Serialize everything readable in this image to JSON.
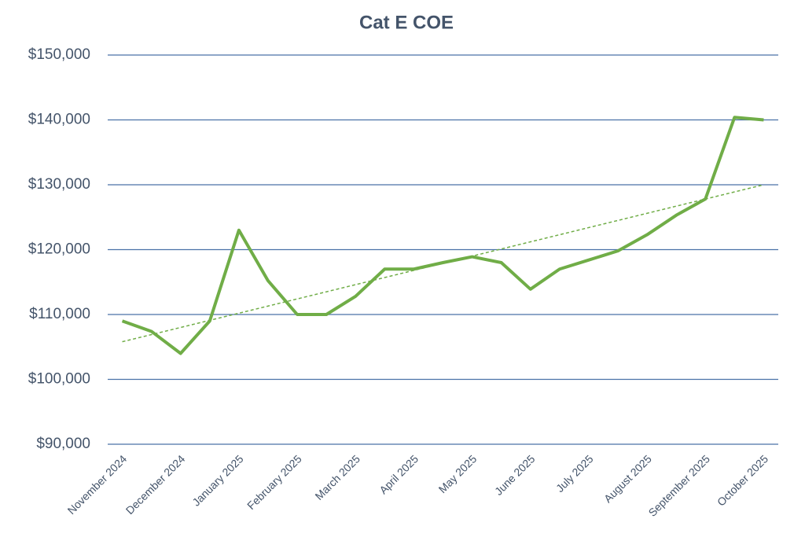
{
  "chart_data": {
    "type": "line",
    "title": "Cat E COE",
    "categories": [
      "November 2024",
      null,
      "December 2024",
      null,
      "January 2025",
      null,
      "February 2025",
      null,
      "March 2025",
      null,
      "April 2025",
      null,
      "May 2025",
      null,
      "June 2025",
      null,
      "July 2025",
      null,
      "August 2025",
      null,
      "September 2025",
      null,
      "October 2025"
    ],
    "series": [
      {
        "color": "#70ad47",
        "values": [
          109000,
          107400,
          104000,
          109000,
          123000,
          115200,
          110000,
          110000,
          112800,
          117000,
          117000,
          118000,
          118900,
          118000,
          113900,
          117000,
          118400,
          119800,
          122300,
          125300,
          127800,
          140400,
          140000
        ]
      }
    ],
    "trendline": {
      "values": [
        105800,
        130000
      ],
      "color": "#70ad47",
      "style": "dashed"
    },
    "ylim": [
      90000,
      150000
    ],
    "yticks": [
      {
        "value": 90000,
        "label": "$90,000"
      },
      {
        "value": 100000,
        "label": "$100,000"
      },
      {
        "value": 110000,
        "label": "$110,000"
      },
      {
        "value": 120000,
        "label": "$120,000"
      },
      {
        "value": 130000,
        "label": "$130,000"
      },
      {
        "value": 140000,
        "label": "$140,000"
      },
      {
        "value": 150000,
        "label": "$150,000"
      }
    ],
    "grid": true,
    "grid_color": "#4a72a8"
  }
}
